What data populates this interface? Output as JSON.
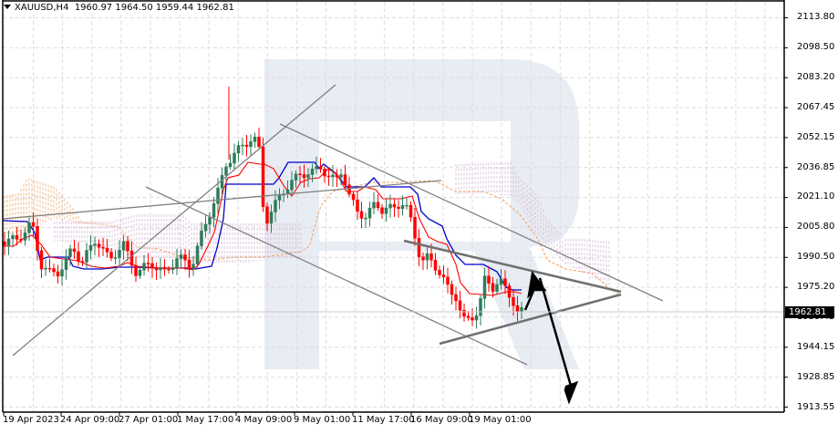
{
  "header": {
    "symbol": "XAUUSD,H4",
    "open": "1960.97",
    "high": "1964.50",
    "low": "1959.44",
    "close": "1962.81"
  },
  "price_axis": {
    "ticks": [
      "2113.80",
      "2098.50",
      "2083.20",
      "2067.45",
      "2052.15",
      "2036.85",
      "2021.10",
      "2005.80",
      "1990.50",
      "1975.20",
      "1959.45",
      "1944.15",
      "1928.85",
      "1913.55"
    ],
    "current_price": "1962.81"
  },
  "time_axis": {
    "ticks": [
      "19 Apr 2023",
      "24 Apr 09:00",
      "27 Apr 01:00",
      "1 May 17:00",
      "4 May 09:00",
      "9 May 01:00",
      "11 May 17:00",
      "16 May 09:00",
      "19 May 01:00"
    ]
  },
  "colors": {
    "bull_candle": "#2e7d5b",
    "bear_candle": "#ff0000",
    "tenkan": "#ff0000",
    "kijun": "#0000cc",
    "senkou_a": "#f4a460",
    "senkou_b": "#d8bfd8",
    "trendline": "#808080",
    "arrow": "#000000",
    "grid": "#e0e0e0",
    "watermark": "#e8ecf3"
  },
  "chart_data": {
    "type": "candlestick",
    "title": "XAUUSD,H4 1960.97 1964.50 1959.44 1962.81",
    "xlabel": "",
    "ylabel": "",
    "ylim": [
      1913.55,
      2113.8
    ],
    "grid": true,
    "indicators": [
      "Ichimoku Kinko Hyo (Tenkan-sen red, Kijun-sen blue, Kumo cloud orange/thistle)"
    ],
    "x_ticks": [
      "19 Apr 2023",
      "24 Apr 09:00",
      "27 Apr 01:00",
      "1 May 17:00",
      "4 May 09:00",
      "9 May 01:00",
      "11 May 17:00",
      "16 May 09:00",
      "19 May 01:00"
    ],
    "y_ticks": [
      2113.8,
      2098.5,
      2083.2,
      2067.45,
      2052.15,
      2036.85,
      2021.1,
      2005.8,
      1990.5,
      1975.2,
      1959.45,
      1944.15,
      1928.85,
      1913.55
    ],
    "last_bar": {
      "open": 1960.97,
      "high": 1964.5,
      "low": 1959.44,
      "close": 1962.81
    },
    "approx_close_path": [
      {
        "x": "19 Apr 2023",
        "close": 1995
      },
      {
        "x": "24 Apr 09:00",
        "close": 1993
      },
      {
        "x": "27 Apr 01:00",
        "close": 1990
      },
      {
        "x": "1 May 17:00",
        "close": 2015
      },
      {
        "x": "4 May 09:00",
        "close": 2050
      },
      {
        "x": "5 May",
        "close": 2002
      },
      {
        "x": "9 May 01:00",
        "close": 2035
      },
      {
        "x": "11 May 17:00",
        "close": 2012
      },
      {
        "x": "16 May 09:00",
        "close": 1985
      },
      {
        "x": "17 May",
        "close": 1952
      },
      {
        "x": "19 May 01:00",
        "close": 1975
      },
      {
        "x": "last",
        "close": 1962.81
      }
    ],
    "annotations": [
      "Ascending channel (Apr 19 – May 9)",
      "Descending channel (May 4 – May 19)",
      "Symmetrical triangle converging near 1975",
      "Forecast arrow up to ~1985, then down to ~1918"
    ]
  }
}
